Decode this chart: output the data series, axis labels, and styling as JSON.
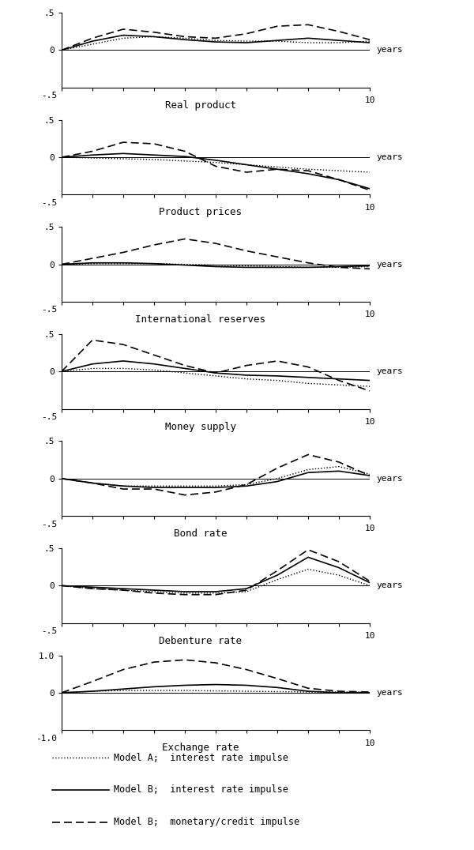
{
  "panels": [
    {
      "label": "Real product",
      "ylim": [
        -0.5,
        0.5
      ],
      "ytick_top": ".5",
      "ytick_bot": "-.5",
      "dotted": [
        0,
        0.08,
        0.16,
        0.18,
        0.16,
        0.13,
        0.12,
        0.12,
        0.1,
        0.1,
        0.12
      ],
      "solid": [
        0,
        0.12,
        0.2,
        0.18,
        0.14,
        0.11,
        0.1,
        0.13,
        0.16,
        0.13,
        0.1
      ],
      "dashed": [
        0,
        0.16,
        0.28,
        0.24,
        0.18,
        0.16,
        0.22,
        0.32,
        0.34,
        0.25,
        0.14
      ]
    },
    {
      "label": "Product prices",
      "ylim": [
        -0.5,
        0.5
      ],
      "ytick_top": ".5",
      "ytick_bot": "-.5",
      "dotted": [
        0,
        -0.01,
        -0.02,
        -0.03,
        -0.05,
        -0.07,
        -0.1,
        -0.13,
        -0.16,
        -0.18,
        -0.2
      ],
      "solid": [
        0,
        0.03,
        0.05,
        0.03,
        0.01,
        -0.04,
        -0.1,
        -0.16,
        -0.22,
        -0.3,
        -0.42
      ],
      "dashed": [
        0,
        0.08,
        0.2,
        0.18,
        0.08,
        -0.12,
        -0.2,
        -0.16,
        -0.18,
        -0.3,
        -0.44
      ]
    },
    {
      "label": "International reserves",
      "ylim": [
        -0.5,
        0.5
      ],
      "ytick_top": ".5",
      "ytick_bot": "-.5",
      "dotted": [
        0,
        0.01,
        0.01,
        0.01,
        0.0,
        -0.01,
        -0.02,
        -0.03,
        -0.04,
        -0.04,
        -0.03
      ],
      "solid": [
        0,
        0.02,
        0.02,
        0.01,
        -0.01,
        -0.03,
        -0.04,
        -0.04,
        -0.04,
        -0.03,
        -0.02
      ],
      "dashed": [
        0,
        0.08,
        0.16,
        0.26,
        0.34,
        0.28,
        0.18,
        0.1,
        0.02,
        -0.04,
        -0.06
      ]
    },
    {
      "label": "Money supply",
      "ylim": [
        -0.5,
        0.5
      ],
      "ytick_top": ".5",
      "ytick_bot": "-.5",
      "dotted": [
        0,
        0.04,
        0.04,
        0.02,
        -0.02,
        -0.06,
        -0.1,
        -0.12,
        -0.16,
        -0.18,
        -0.2
      ],
      "solid": [
        0,
        0.1,
        0.14,
        0.1,
        0.04,
        -0.02,
        -0.05,
        -0.06,
        -0.08,
        -0.1,
        -0.12
      ],
      "dashed": [
        0,
        0.42,
        0.36,
        0.22,
        0.08,
        -0.02,
        0.08,
        0.14,
        0.06,
        -0.12,
        -0.26
      ]
    },
    {
      "label": "Bond rate",
      "ylim": [
        -0.5,
        0.5
      ],
      "ytick_top": ".5",
      "ytick_bot": "-.5",
      "dotted": [
        0,
        -0.06,
        -0.1,
        -0.1,
        -0.1,
        -0.1,
        -0.08,
        0.0,
        0.12,
        0.16,
        0.06
      ],
      "solid": [
        0,
        -0.06,
        -0.1,
        -0.12,
        -0.12,
        -0.12,
        -0.1,
        -0.04,
        0.08,
        0.1,
        0.04
      ],
      "dashed": [
        0,
        -0.06,
        -0.14,
        -0.14,
        -0.22,
        -0.18,
        -0.08,
        0.14,
        0.32,
        0.22,
        0.04
      ]
    },
    {
      "label": "Debenture rate",
      "ylim": [
        -0.5,
        0.5
      ],
      "ytick_top": ".5",
      "ytick_bot": "-.5",
      "dotted": [
        0,
        -0.04,
        -0.06,
        -0.08,
        -0.1,
        -0.1,
        -0.08,
        0.08,
        0.22,
        0.14,
        0.0
      ],
      "solid": [
        0,
        -0.02,
        -0.04,
        -0.06,
        -0.08,
        -0.08,
        -0.04,
        0.14,
        0.38,
        0.24,
        0.04
      ],
      "dashed": [
        0,
        -0.04,
        -0.06,
        -0.1,
        -0.12,
        -0.12,
        -0.06,
        0.2,
        0.48,
        0.32,
        0.06
      ]
    },
    {
      "label": "Exchange rate",
      "ylim": [
        -1.0,
        1.0
      ],
      "ytick_top": "1.0",
      "ytick_bot": "-1.0",
      "dotted": [
        0,
        0.04,
        0.06,
        0.06,
        0.06,
        0.05,
        0.04,
        0.03,
        0.02,
        0.02,
        0.02
      ],
      "solid": [
        0,
        0.04,
        0.1,
        0.16,
        0.2,
        0.22,
        0.2,
        0.14,
        0.04,
        0.0,
        0.0
      ],
      "dashed": [
        0,
        0.3,
        0.62,
        0.82,
        0.88,
        0.8,
        0.62,
        0.38,
        0.12,
        0.04,
        0.02
      ]
    }
  ],
  "x_values": [
    0,
    1,
    2,
    3,
    4,
    5,
    6,
    7,
    8,
    9,
    10
  ],
  "legend_items": [
    {
      "style": "dotted",
      "label": "Model A;  interest rate impulse"
    },
    {
      "style": "solid",
      "label": "Model B;  interest rate impulse"
    },
    {
      "style": "dashed",
      "label": "Model B;  monetary/credit impulse"
    }
  ],
  "bg_color": "#ffffff"
}
